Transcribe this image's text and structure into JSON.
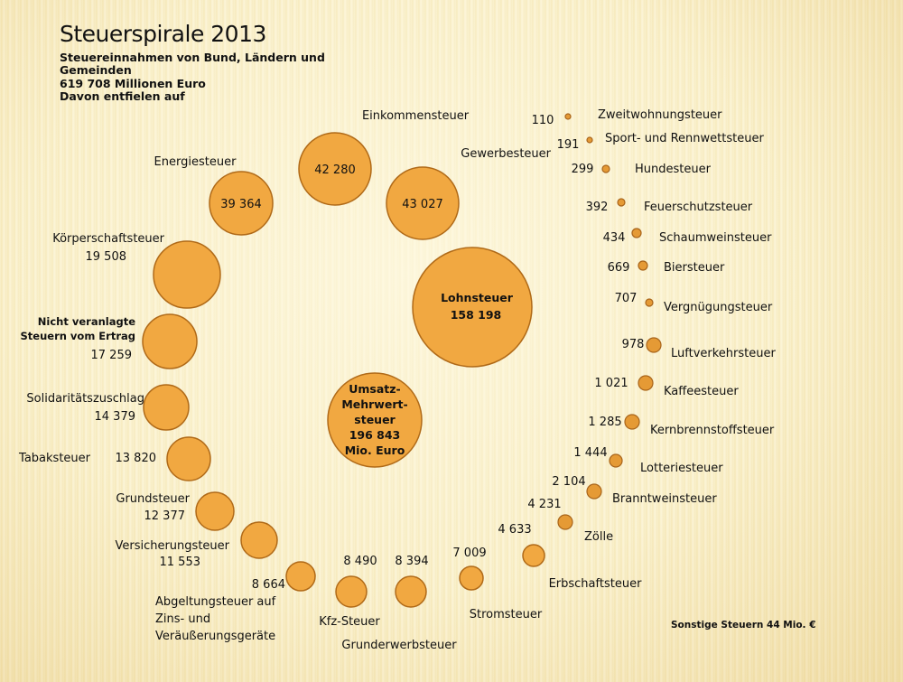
{
  "header": {
    "title": "Steuerspirale 2013",
    "subtitle_1": "Steuereinnahmen von Bund, Ländern und",
    "subtitle_2": "Gemeinden",
    "subtitle_3": "619 708 Millionen Euro",
    "subtitle_4": "Davon entfielen auf"
  },
  "footnote": "Sonstige Steuern 44 Mio. €",
  "chart_data": {
    "type": "bubble-spiral",
    "title": "Steuerspirale 2013",
    "total_label": "619 708 Millionen Euro",
    "series": [
      {
        "name": "Umsatz-Mehrwertsteuer",
        "label_lines": [
          "Umsatz-",
          "Mehrwert-",
          "steuer"
        ],
        "value": 196843,
        "value_text": "196  843",
        "unit_text": "Mio. Euro"
      },
      {
        "name": "Lohnsteuer",
        "value": 158198,
        "value_text": "158 198"
      },
      {
        "name": "Gewerbesteuer",
        "value": 43027,
        "value_text": "43 027"
      },
      {
        "name": "Einkommensteuer",
        "value": 42280,
        "value_text": "42 280"
      },
      {
        "name": "Energiesteuer",
        "value": 39364,
        "value_text": "39 364"
      },
      {
        "name": "Körperschaftsteuer",
        "value": 19508,
        "value_text": "19 508"
      },
      {
        "name": "Nicht veranlagte Steuern vom Ertrag",
        "label_lines": [
          "Nicht veranlagte",
          "Steuern vom Ertrag"
        ],
        "value": 17259,
        "value_text": "17 259"
      },
      {
        "name": "Solidaritätszuschlag",
        "value": 14379,
        "value_text": "14 379"
      },
      {
        "name": "Tabaksteuer",
        "value": 13820,
        "value_text": "13 820"
      },
      {
        "name": "Grundsteuer",
        "value": 12377,
        "value_text": "12 377"
      },
      {
        "name": "Versicherungsteuer",
        "value": 11553,
        "value_text": "11 553"
      },
      {
        "name": "Abgeltungsteuer auf Zins- und Veräußerungsgeräte",
        "label_lines": [
          "Abgeltungsteuer auf",
          "Zins- und",
          "Veräußerungsgeräte"
        ],
        "value": 8664,
        "value_text": "8 664"
      },
      {
        "name": "Kfz-Steuer",
        "value": 8490,
        "value_text": "8 490"
      },
      {
        "name": "Grunderwerbsteuer",
        "value": 8394,
        "value_text": "8 394"
      },
      {
        "name": "Stromsteuer",
        "value": 7009,
        "value_text": "7 009"
      },
      {
        "name": "Erbschaftsteuer",
        "value": 4633,
        "value_text": "4 633"
      },
      {
        "name": "Zölle",
        "value": 4231,
        "value_text": "4 231"
      },
      {
        "name": "Branntweinsteuer",
        "value": 2104,
        "value_text": "2 104"
      },
      {
        "name": "Lotteriesteuer",
        "value": 1444,
        "value_text": "1 444"
      },
      {
        "name": "Kernbrennstoffsteuer",
        "value": 1285,
        "value_text": "1 285"
      },
      {
        "name": "Kaffeesteuer",
        "value": 1021,
        "value_text": "1 021"
      },
      {
        "name": "Luftverkehrsteuer",
        "value": 978,
        "value_text": "978"
      },
      {
        "name": "Vergnügungsteuer",
        "value": 707,
        "value_text": "707"
      },
      {
        "name": "Biersteuer",
        "value": 669,
        "value_text": "669"
      },
      {
        "name": "Schaumweinsteuer",
        "value": 434,
        "value_text": "434"
      },
      {
        "name": "Feuerschutzsteuer",
        "value": 392,
        "value_text": "392"
      },
      {
        "name": "Hundesteuer",
        "value": 299,
        "value_text": "299"
      },
      {
        "name": "Sport- und Rennwettsteuer",
        "value": 191,
        "value_text": "191"
      },
      {
        "name": "Zweitwohnungsteuer",
        "value": 110,
        "value_text": "110"
      }
    ],
    "colors": {
      "bubble": "#f1a841",
      "stroke": "#b06a18",
      "background": "#f6ebc2"
    }
  }
}
